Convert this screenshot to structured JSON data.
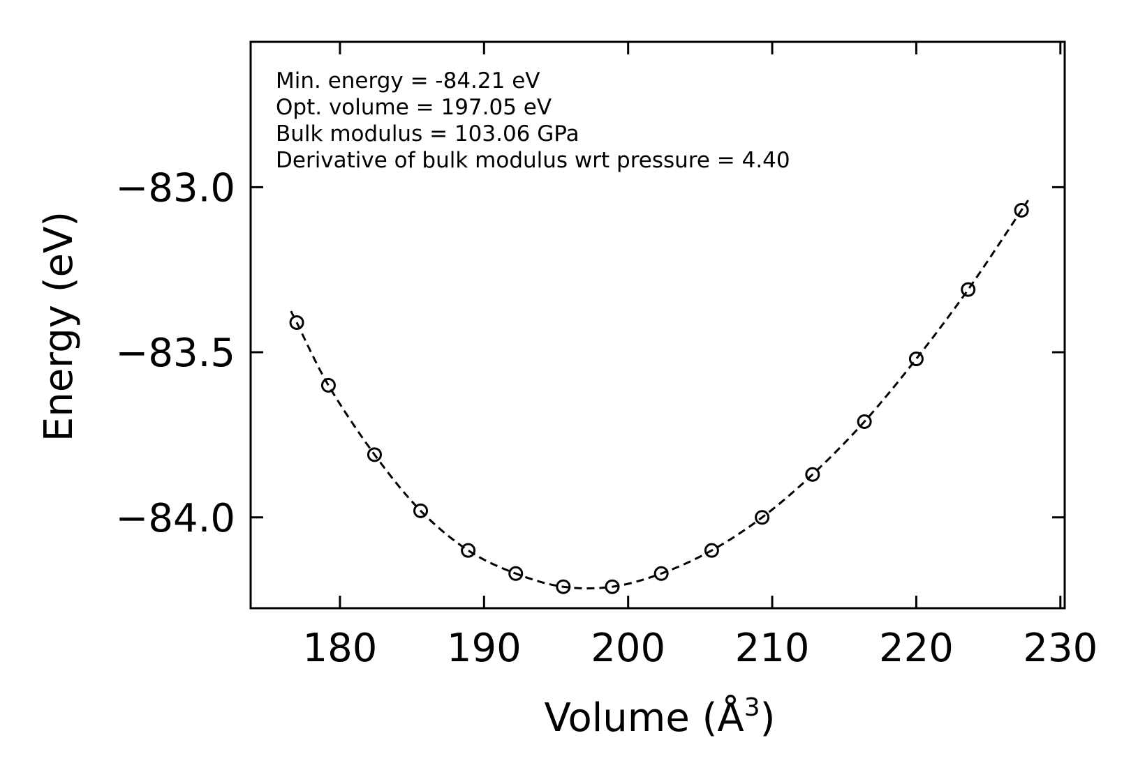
{
  "chart_data": {
    "type": "scatter",
    "title": "",
    "xlabel": "Volume (Å",
    "xlabel_sup": "3",
    "xlabel_close": ")",
    "ylabel": "Energy (eV)",
    "xlim": [
      173.8,
      230.3
    ],
    "ylim": [
      -84.275,
      -82.56
    ],
    "xticks": [
      180,
      190,
      200,
      210,
      220,
      230
    ],
    "xtick_labels": [
      "180",
      "190",
      "200",
      "210",
      "220",
      "230"
    ],
    "yticks": [
      -84.0,
      -83.5,
      -83.0
    ],
    "ytick_labels": [
      "−84.0",
      "−83.5",
      "−83.0"
    ],
    "series": [
      {
        "name": "data",
        "marker": "open-circle",
        "x": [
          177.0,
          179.2,
          182.4,
          185.6,
          188.9,
          192.2,
          195.5,
          198.9,
          202.3,
          205.8,
          209.3,
          212.8,
          216.4,
          220.0,
          223.6,
          227.3
        ],
        "y": [
          -83.41,
          -83.6,
          -83.81,
          -83.98,
          -84.1,
          -84.17,
          -84.21,
          -84.21,
          -84.17,
          -84.1,
          -84.0,
          -83.87,
          -83.71,
          -83.52,
          -83.31,
          -83.07
        ]
      },
      {
        "name": "fit",
        "style": "dashed",
        "x_range": [
          176.6,
          227.7
        ],
        "min_energy": -84.21,
        "opt_volume": 197.05,
        "bulk_modulus_gpa": 103.06,
        "bulk_modulus_derivative": 4.4
      }
    ],
    "annotations": [
      "Min. energy = -84.21 eV",
      "Opt. volume = 197.05 eV",
      "Bulk modulus = 103.06 GPa",
      "Derivative of bulk modulus wrt pressure = 4.40"
    ],
    "colors": {
      "line": "#000000",
      "background": "#ffffff"
    }
  }
}
